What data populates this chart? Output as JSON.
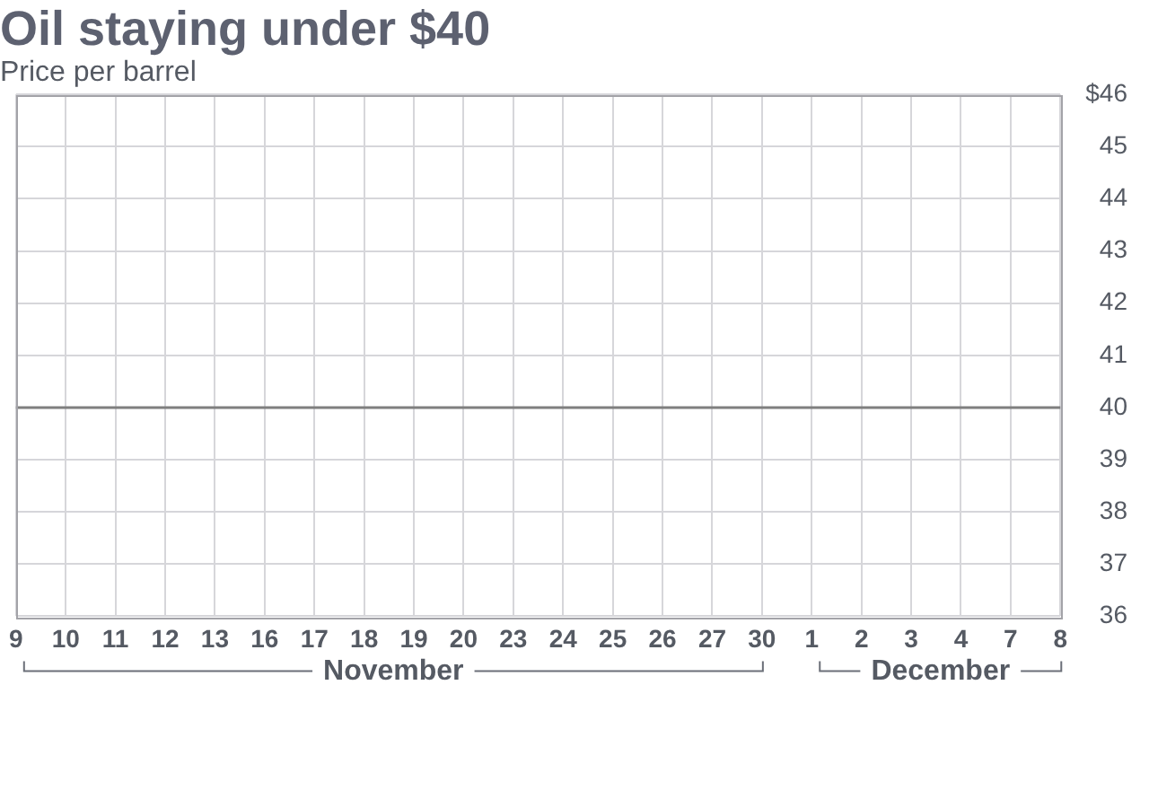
{
  "chart_data": {
    "type": "line",
    "title": "Oil staying under $40",
    "subtitle": "Price per barrel",
    "categories": [
      "9",
      "10",
      "11",
      "12",
      "13",
      "16",
      "17",
      "18",
      "19",
      "20",
      "23",
      "24",
      "25",
      "26",
      "27",
      "30",
      "1",
      "2",
      "3",
      "4",
      "7",
      "8"
    ],
    "values": [
      null,
      null,
      null,
      null,
      null,
      null,
      null,
      null,
      null,
      null,
      null,
      null,
      null,
      null,
      null,
      null,
      null,
      null,
      null,
      null,
      null,
      null
    ],
    "ylim": [
      36,
      46
    ],
    "yticks": [
      36,
      37,
      38,
      39,
      40,
      41,
      42,
      43,
      44,
      45,
      {
        "value": 46,
        "label": "$46"
      }
    ],
    "ref_lines": [
      {
        "axis": "y",
        "value": 40,
        "color": "#7f7f7f"
      }
    ],
    "annotations": [
      "November",
      "December"
    ],
    "grid": true,
    "legend": false
  }
}
